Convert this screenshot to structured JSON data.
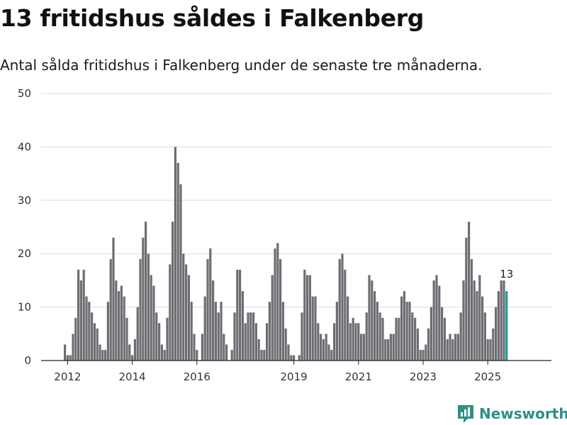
{
  "title": "13 fritidshus såldes i Falkenberg",
  "subtitle": "Antal sålda fritidshus i Falkenberg under de senaste tre månaderna.",
  "brand": {
    "name": "Newsworthy",
    "icon": "newsworthy-logo-icon",
    "color": "#2f8f86"
  },
  "colors": {
    "bar": "#6e6d73",
    "highlight": "#1b9e95"
  },
  "chart_data": {
    "type": "bar",
    "title": "13 fritidshus såldes i Falkenberg",
    "subtitle": "Antal sålda fritidshus i Falkenberg under de senaste tre månaderna.",
    "xlabel": "",
    "ylabel": "",
    "ylim": [
      0,
      50
    ],
    "yticks": [
      0,
      10,
      20,
      30,
      40,
      50
    ],
    "xticks": [
      {
        "label": "2012",
        "index": 1
      },
      {
        "label": "2014",
        "index": 25
      },
      {
        "label": "2016",
        "index": 49
      },
      {
        "label": "2019",
        "index": 85
      },
      {
        "label": "2021",
        "index": 109
      },
      {
        "label": "2023",
        "index": 133
      },
      {
        "label": "2025",
        "index": 157
      }
    ],
    "series": [
      {
        "name": "Antal sålda fritidshus",
        "values": [
          3,
          1,
          1,
          5,
          8,
          17,
          15,
          17,
          12,
          11,
          9,
          7,
          6,
          3,
          2,
          2,
          11,
          19,
          23,
          15,
          13,
          14,
          12,
          8,
          3,
          1,
          4,
          10,
          19,
          23,
          26,
          20,
          16,
          14,
          9,
          7,
          3,
          2,
          8,
          18,
          26,
          40,
          37,
          33,
          20,
          18,
          16,
          11,
          5,
          2,
          0,
          5,
          12,
          19,
          21,
          15,
          11,
          9,
          11,
          5,
          3,
          0,
          2,
          9,
          17,
          17,
          13,
          7,
          9,
          9,
          9,
          7,
          4,
          2,
          2,
          7,
          11,
          16,
          21,
          22,
          19,
          11,
          6,
          3,
          1,
          1,
          0,
          1,
          9,
          17,
          16,
          16,
          12,
          12,
          7,
          5,
          4,
          5,
          3,
          2,
          7,
          11,
          19,
          20,
          17,
          12,
          7,
          8,
          7,
          7,
          5,
          5,
          9,
          16,
          15,
          13,
          11,
          9,
          8,
          4,
          4,
          5,
          5,
          8,
          8,
          12,
          13,
          11,
          11,
          9,
          8,
          6,
          2,
          2,
          3,
          6,
          10,
          15,
          16,
          14,
          10,
          8,
          4,
          5,
          4,
          5,
          5,
          9,
          15,
          23,
          26,
          19,
          15,
          13,
          16,
          12,
          9,
          4,
          4,
          6,
          10,
          13,
          15,
          15,
          13
        ]
      }
    ],
    "highlight_last": true,
    "last_value_label": "13"
  }
}
